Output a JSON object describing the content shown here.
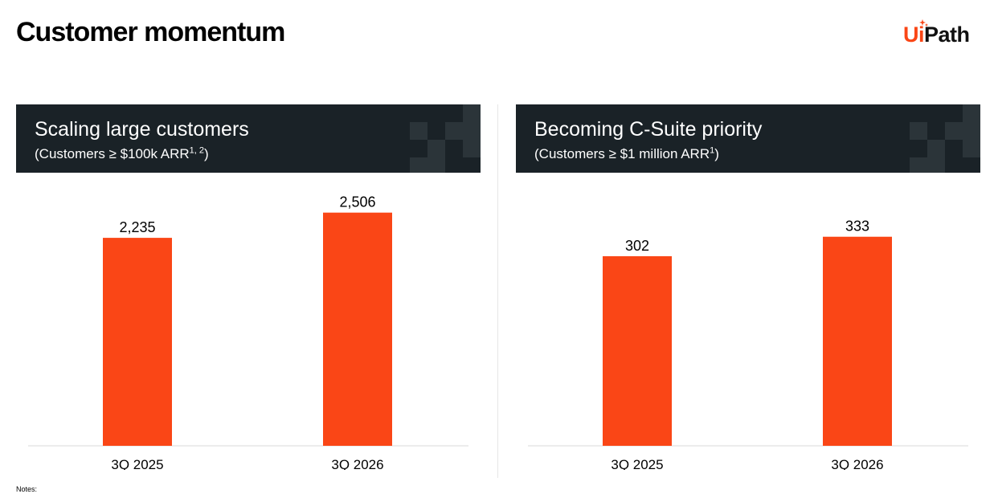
{
  "page": {
    "title": "Customer momentum",
    "notes_label": "Notes:"
  },
  "logo": {
    "ui": "Ui",
    "path": "Path"
  },
  "colors": {
    "bar": "#FA4616",
    "header_bg": "#1a2227",
    "pattern": "#2b3439"
  },
  "panels": [
    {
      "title": "Scaling large customers",
      "subtitle": "(Customers ≥ $100k ARR",
      "subtitle_sup": "1, 2",
      "subtitle_end": ")"
    },
    {
      "title": "Becoming C-Suite priority",
      "subtitle": "(Customers ≥ $1 million ARR",
      "subtitle_sup": "1",
      "subtitle_end": ")"
    }
  ],
  "chart_data": [
    {
      "type": "bar",
      "categories": [
        "3Q 2025",
        "3Q 2026"
      ],
      "values": [
        2235,
        2506
      ],
      "value_labels": [
        "2,235",
        "2,506"
      ],
      "title": "Scaling large customers",
      "subtitle": "(Customers ≥ $100k ARR1, 2)",
      "ylim": [
        0,
        2935
      ],
      "grid": false,
      "legend": "none"
    },
    {
      "type": "bar",
      "categories": [
        "3Q 2025",
        "3Q 2026"
      ],
      "values": [
        302,
        333
      ],
      "value_labels": [
        "302",
        "333"
      ],
      "title": "Becoming C-Suite priority",
      "subtitle": "(Customers ≥ $1 million ARR1)",
      "ylim": [
        0,
        435
      ],
      "grid": false,
      "legend": "none"
    }
  ]
}
